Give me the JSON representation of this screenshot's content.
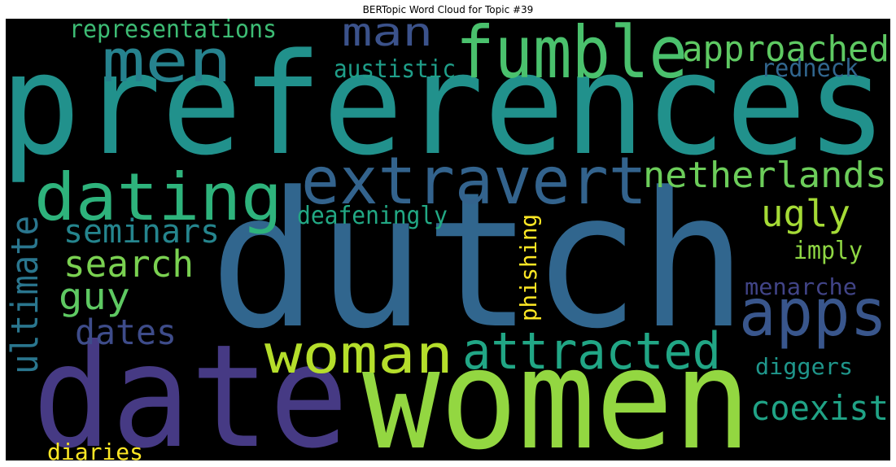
{
  "chart_data": {
    "type": "wordcloud",
    "title": "BERTopic Word Cloud for Topic #39",
    "background": "#000000",
    "words": [
      {
        "text": "preferences",
        "weight": 1.0,
        "color": "#21918c",
        "orientation": "horizontal"
      },
      {
        "text": "dutch",
        "weight": 0.98,
        "color": "#31668e",
        "orientation": "horizontal"
      },
      {
        "text": "date",
        "weight": 0.78,
        "color": "#463a84",
        "orientation": "horizontal"
      },
      {
        "text": "women",
        "weight": 0.78,
        "color": "#93d741",
        "orientation": "horizontal"
      },
      {
        "text": "fumble",
        "weight": 0.55,
        "color": "#4ac16d",
        "orientation": "horizontal"
      },
      {
        "text": "men",
        "weight": 0.48,
        "color": "#26828e",
        "orientation": "horizontal"
      },
      {
        "text": "dating",
        "weight": 0.48,
        "color": "#2eb37c",
        "orientation": "horizontal"
      },
      {
        "text": "extravert",
        "weight": 0.44,
        "color": "#33638d",
        "orientation": "horizontal"
      },
      {
        "text": "apps",
        "weight": 0.44,
        "color": "#39568c",
        "orientation": "horizontal"
      },
      {
        "text": "woman",
        "weight": 0.4,
        "color": "#b5de2b",
        "orientation": "horizontal"
      },
      {
        "text": "attracted",
        "weight": 0.34,
        "color": "#21a685",
        "orientation": "horizontal"
      },
      {
        "text": "approached",
        "weight": 0.32,
        "color": "#5ec962",
        "orientation": "horizontal"
      },
      {
        "text": "netherlands",
        "weight": 0.3,
        "color": "#6ccd5a",
        "orientation": "horizontal"
      },
      {
        "text": "man",
        "weight": 0.3,
        "color": "#3b528b",
        "orientation": "horizontal"
      },
      {
        "text": "ugly",
        "weight": 0.3,
        "color": "#a5db36",
        "orientation": "horizontal"
      },
      {
        "text": "search",
        "weight": 0.28,
        "color": "#7ad151",
        "orientation": "horizontal"
      },
      {
        "text": "guy",
        "weight": 0.28,
        "color": "#5ec962",
        "orientation": "horizontal"
      },
      {
        "text": "seminars",
        "weight": 0.26,
        "color": "#25858e",
        "orientation": "horizontal"
      },
      {
        "text": "coexist",
        "weight": 0.26,
        "color": "#20a386",
        "orientation": "horizontal"
      },
      {
        "text": "dates",
        "weight": 0.26,
        "color": "#3e4c8a",
        "orientation": "horizontal"
      },
      {
        "text": "ultimate",
        "weight": 0.26,
        "color": "#2a768e",
        "orientation": "vertical"
      },
      {
        "text": "representations",
        "weight": 0.18,
        "color": "#3dbc74",
        "orientation": "horizontal"
      },
      {
        "text": "austistic",
        "weight": 0.18,
        "color": "#1f9e89",
        "orientation": "horizontal"
      },
      {
        "text": "redneck",
        "weight": 0.18,
        "color": "#31668e",
        "orientation": "horizontal"
      },
      {
        "text": "deafeningly",
        "weight": 0.18,
        "color": "#22a884",
        "orientation": "horizontal"
      },
      {
        "text": "phishing",
        "weight": 0.18,
        "color": "#fde725",
        "orientation": "vertical"
      },
      {
        "text": "imply",
        "weight": 0.18,
        "color": "#8fd744",
        "orientation": "horizontal"
      },
      {
        "text": "menarche",
        "weight": 0.18,
        "color": "#414487",
        "orientation": "horizontal"
      },
      {
        "text": "diggers",
        "weight": 0.18,
        "color": "#1f968b",
        "orientation": "horizontal"
      },
      {
        "text": "diaries",
        "weight": 0.18,
        "color": "#fde725",
        "orientation": "horizontal"
      }
    ]
  }
}
